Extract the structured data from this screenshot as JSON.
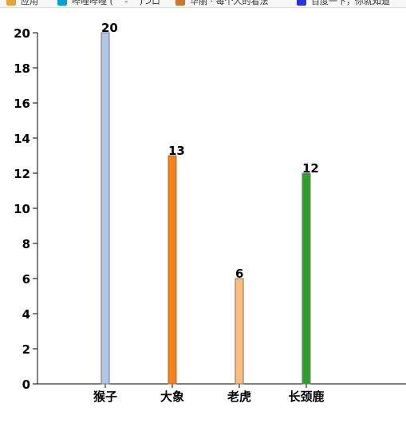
{
  "bookmarks": {
    "items": [
      {
        "label": "应用",
        "icon": "apps-grid-icon",
        "color": "#e8a33d"
      },
      {
        "label": "哔哩哔哩 ( ゜- ゜)つロ",
        "icon": "bilibili-icon",
        "color": "#00a1d6"
      },
      {
        "label": "华丽 · 每个人的看法",
        "icon": "pencil-icon",
        "color": "#c9772c"
      },
      {
        "label": "百度一下，你就知道",
        "icon": "baidu-paw-icon",
        "color": "#2932e1"
      }
    ]
  },
  "chart_data": {
    "type": "bar",
    "categories": [
      "猴子",
      "大象",
      "老虎",
      "长颈鹿"
    ],
    "values": [
      20,
      13,
      6,
      12
    ],
    "colors": [
      "#aec7e8",
      "#ff7f0e",
      "#ffbb78",
      "#2ca02c"
    ],
    "data_labels": [
      "20",
      "13",
      "6",
      "12"
    ],
    "yticks": [
      "0",
      "2",
      "4",
      "6",
      "8",
      "10",
      "12",
      "14",
      "16",
      "18",
      "20"
    ],
    "ylim": [
      0,
      20
    ],
    "grid": false,
    "legend": false,
    "title": "",
    "xlabel": "",
    "ylabel": ""
  }
}
